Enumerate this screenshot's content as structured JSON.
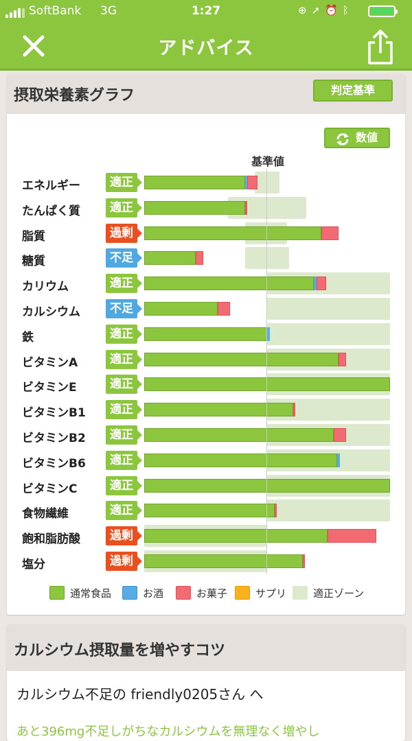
{
  "status_bar": {
    "carrier": "SoftBank",
    "network": "3G",
    "time": "1:27"
  },
  "nav": {
    "title": "アドバイス",
    "close_icon": "close-icon",
    "share_icon": "share-icon"
  },
  "graph_card": {
    "title": "摂取栄養素グラフ",
    "criteria_button": "判定基準",
    "value_button": "数値",
    "baseline_label": "基準値"
  },
  "chart_data": {
    "type": "bar",
    "orientation": "horizontal",
    "stacked": true,
    "scale_note": "values are fractions of the chart track width; baseline (基準値) at 0.5",
    "baseline": 0.5,
    "series": [
      {
        "name": "通常食品",
        "color": "#8cc63f"
      },
      {
        "name": "お酒",
        "color": "#5aabe3"
      },
      {
        "name": "お菓子",
        "color": "#f26a72"
      },
      {
        "name": "サプリ",
        "color": "#f9b21b"
      },
      {
        "name": "適正ゾーン",
        "color": "#dde9cc"
      }
    ],
    "rows": [
      {
        "name": "エネルギー",
        "status": "適正",
        "level": "ok",
        "food": 0.41,
        "alcohol": 0.01,
        "snack": 0.04,
        "supp": 0,
        "zone": [
          0.45,
          0.55
        ]
      },
      {
        "name": "たんぱく質",
        "status": "適正",
        "level": "ok",
        "food": 0.41,
        "alcohol": 0,
        "snack": 0.01,
        "supp": 0,
        "zone": [
          0.34,
          0.66
        ]
      },
      {
        "name": "脂質",
        "status": "過剰",
        "level": "high",
        "food": 0.72,
        "alcohol": 0,
        "snack": 0.07,
        "supp": 0,
        "zone": [
          0.41,
          0.58
        ]
      },
      {
        "name": "糖質",
        "status": "不足",
        "level": "low",
        "food": 0.21,
        "alcohol": 0,
        "snack": 0.03,
        "supp": 0,
        "zone": [
          0.41,
          0.59
        ]
      },
      {
        "name": "カリウム",
        "status": "適正",
        "level": "ok",
        "food": 0.69,
        "alcohol": 0.01,
        "snack": 0.04,
        "supp": 0,
        "zone": [
          0.5,
          1.0
        ]
      },
      {
        "name": "カルシウム",
        "status": "不足",
        "level": "low",
        "food": 0.3,
        "alcohol": 0,
        "snack": 0.05,
        "supp": 0,
        "zone": [
          0.5,
          1.0
        ]
      },
      {
        "name": "鉄",
        "status": "適正",
        "level": "ok",
        "food": 0.5,
        "alcohol": 0.01,
        "snack": 0,
        "supp": 0,
        "zone": [
          0.5,
          1.0
        ]
      },
      {
        "name": "ビタミンA",
        "status": "適正",
        "level": "ok",
        "food": 0.79,
        "alcohol": 0,
        "snack": 0.03,
        "supp": 0,
        "zone": [
          0.5,
          1.0
        ]
      },
      {
        "name": "ビタミンE",
        "status": "適正",
        "level": "ok",
        "food": 1.0,
        "alcohol": 0,
        "snack": 0,
        "supp": 0,
        "zone": [
          0.5,
          1.0
        ]
      },
      {
        "name": "ビタミンB1",
        "status": "適正",
        "level": "ok",
        "food": 0.605,
        "alcohol": 0,
        "snack": 0.01,
        "supp": 0,
        "zone": [
          0.5,
          1.0
        ]
      },
      {
        "name": "ビタミンB2",
        "status": "適正",
        "level": "ok",
        "food": 0.77,
        "alcohol": 0,
        "snack": 0.05,
        "supp": 0,
        "zone": [
          0.5,
          1.0
        ]
      },
      {
        "name": "ビタミンB6",
        "status": "適正",
        "level": "ok",
        "food": 0.785,
        "alcohol": 0.01,
        "snack": 0,
        "supp": 0,
        "zone": [
          0.5,
          1.0
        ]
      },
      {
        "name": "ビタミンC",
        "status": "適正",
        "level": "ok",
        "food": 1.0,
        "alcohol": 0,
        "snack": 0,
        "supp": 0,
        "zone": [
          0.5,
          1.0
        ]
      },
      {
        "name": "食物繊維",
        "status": "適正",
        "level": "ok",
        "food": 0.53,
        "alcohol": 0,
        "snack": 0.01,
        "supp": 0,
        "zone": [
          0.5,
          1.0
        ]
      },
      {
        "name": "飽和脂肪酸",
        "status": "過剰",
        "level": "high",
        "food": 0.745,
        "alcohol": 0,
        "snack": 0.2,
        "supp": 0,
        "zone": [
          0,
          0.5
        ]
      },
      {
        "name": "塩分",
        "status": "過剰",
        "level": "high",
        "food": 0.645,
        "alcohol": 0,
        "snack": 0.01,
        "supp": 0,
        "zone": [
          0,
          0.5
        ]
      }
    ]
  },
  "legend": [
    "通常食品",
    "お酒",
    "お菓子",
    "サプリ",
    "適正ゾーン"
  ],
  "tips_card": {
    "title": "カルシウム摂取量を増やすコツ",
    "greeting": "カルシウム不足の friendly0205さん へ",
    "body_cut": "あと396mg不足しがちなカルシウムを無理なく増やし"
  }
}
